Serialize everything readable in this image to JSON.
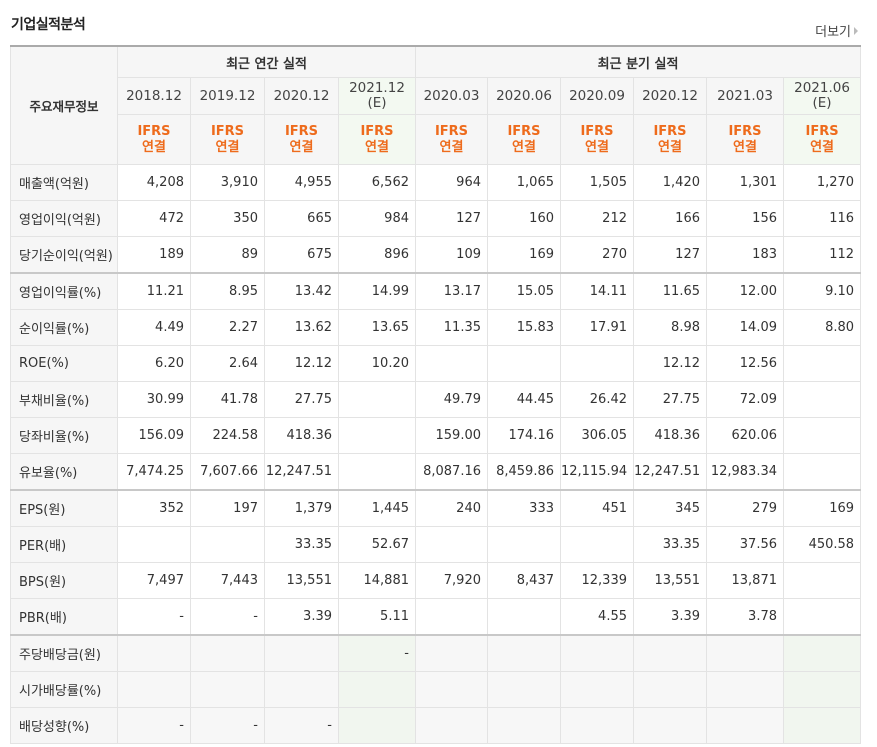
{
  "title": "기업실적분석",
  "more_link": "더보기",
  "header": {
    "row_heading": "주요재무정보",
    "annual": "최근 연간 실적",
    "quarterly": "최근 분기 실적"
  },
  "columns": [
    {
      "period": "2018.12",
      "basis": [
        "IFRS",
        "연결"
      ]
    },
    {
      "period": "2019.12",
      "basis": [
        "IFRS",
        "연결"
      ]
    },
    {
      "period": "2020.12",
      "basis": [
        "IFRS",
        "연결"
      ]
    },
    {
      "period": "2021.12",
      "mark": "(E)",
      "basis": [
        "IFRS",
        "연결"
      ]
    },
    {
      "period": "2020.03",
      "basis": [
        "IFRS",
        "연결"
      ]
    },
    {
      "period": "2020.06",
      "basis": [
        "IFRS",
        "연결"
      ]
    },
    {
      "period": "2020.09",
      "basis": [
        "IFRS",
        "연결"
      ]
    },
    {
      "period": "2020.12",
      "basis": [
        "IFRS",
        "연결"
      ]
    },
    {
      "period": "2021.03",
      "basis": [
        "IFRS",
        "연결"
      ]
    },
    {
      "period": "2021.06",
      "mark": "(E)",
      "basis": [
        "IFRS",
        "연결"
      ]
    }
  ],
  "groups": [
    {
      "rows": [
        {
          "label": "매출액(억원)",
          "values": [
            "4,208",
            "3,910",
            "4,955",
            "6,562",
            "964",
            "1,065",
            "1,505",
            "1,420",
            "1,301",
            "1,270"
          ]
        },
        {
          "label": "영업이익(억원)",
          "values": [
            "472",
            "350",
            "665",
            "984",
            "127",
            "160",
            "212",
            "166",
            "156",
            "116"
          ]
        },
        {
          "label": "당기순이익(억원)",
          "values": [
            "189",
            "89",
            "675",
            "896",
            "109",
            "169",
            "270",
            "127",
            "183",
            "112"
          ]
        }
      ]
    },
    {
      "rows": [
        {
          "label": "영업이익률(%)",
          "values": [
            "11.21",
            "8.95",
            "13.42",
            "14.99",
            "13.17",
            "15.05",
            "14.11",
            "11.65",
            "12.00",
            "9.10"
          ]
        },
        {
          "label": "순이익률(%)",
          "values": [
            "4.49",
            "2.27",
            "13.62",
            "13.65",
            "11.35",
            "15.83",
            "17.91",
            "8.98",
            "14.09",
            "8.80"
          ]
        },
        {
          "label": "ROE(%)",
          "values": [
            "6.20",
            "2.64",
            "12.12",
            "10.20",
            null,
            null,
            null,
            "12.12",
            "12.56",
            null
          ]
        },
        {
          "label": "부채비율(%)",
          "values": [
            "30.99",
            "41.78",
            "27.75",
            null,
            "49.79",
            "44.45",
            "26.42",
            "27.75",
            "72.09",
            null
          ]
        },
        {
          "label": "당좌비율(%)",
          "values": [
            "156.09",
            "224.58",
            "418.36",
            null,
            "159.00",
            "174.16",
            "306.05",
            "418.36",
            "620.06",
            null
          ]
        },
        {
          "label": "유보율(%)",
          "values": [
            "7,474.25",
            "7,607.66",
            "12,247.51",
            null,
            "8,087.16",
            "8,459.86",
            "12,115.94",
            "12,247.51",
            "12,983.34",
            null
          ]
        }
      ]
    },
    {
      "rows": [
        {
          "label": "EPS(원)",
          "values": [
            "352",
            "197",
            "1,379",
            "1,445",
            "240",
            "333",
            "451",
            "345",
            "279",
            "169"
          ]
        },
        {
          "label": "PER(배)",
          "values": [
            null,
            null,
            "33.35",
            "52.67",
            null,
            null,
            null,
            "33.35",
            "37.56",
            "450.58"
          ]
        },
        {
          "label": "BPS(원)",
          "values": [
            "7,497",
            "7,443",
            "13,551",
            "14,881",
            "7,920",
            "8,437",
            "12,339",
            "13,551",
            "13,871",
            null
          ]
        },
        {
          "label": "PBR(배)",
          "values": [
            "-",
            "-",
            "3.39",
            "5.11",
            null,
            null,
            "4.55",
            "3.39",
            "3.78",
            null
          ]
        }
      ]
    },
    {
      "shaded": true,
      "rows": [
        {
          "label": "주당배당금(원)",
          "values": [
            null,
            null,
            null,
            "-",
            null,
            null,
            null,
            null,
            null,
            null
          ]
        },
        {
          "label": "시가배당률(%)",
          "values": [
            null,
            null,
            null,
            null,
            null,
            null,
            null,
            null,
            null,
            null
          ]
        },
        {
          "label": "배당성향(%)",
          "values": [
            "-",
            "-",
            "-",
            null,
            null,
            null,
            null,
            null,
            null,
            null
          ]
        }
      ]
    }
  ]
}
